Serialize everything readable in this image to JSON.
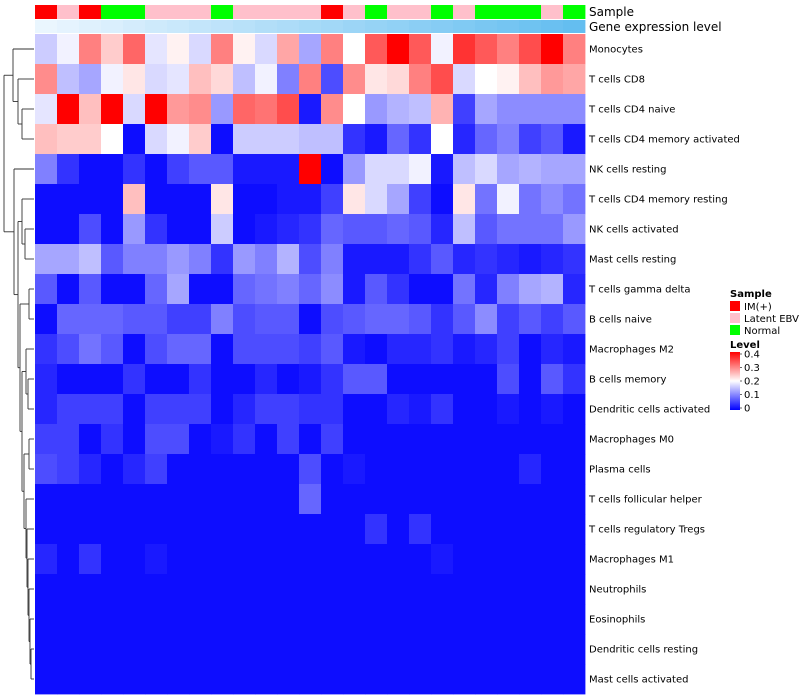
{
  "chart_data": {
    "type": "heatmap",
    "annotations": {
      "sample_title": "Sample",
      "level_title": "Gene expression level",
      "sample_colors": {
        "IM(+)": "#ff0000",
        "Latent EBV": "#ffc0cb",
        "Normal": "#00ff00"
      },
      "samples": [
        "IM(+)",
        "Latent EBV",
        "IM(+)",
        "Normal",
        "Normal",
        "Latent EBV",
        "Latent EBV",
        "Latent EBV",
        "Normal",
        "Latent EBV",
        "Latent EBV",
        "Latent EBV",
        "Latent EBV",
        "IM(+)",
        "Latent EBV",
        "Normal",
        "Latent EBV",
        "Latent EBV",
        "Normal",
        "Latent EBV",
        "Normal",
        "Normal",
        "Normal",
        "Latent EBV",
        "Normal"
      ],
      "levels": [
        0.01,
        0.02,
        0.03,
        0.04,
        0.05,
        0.06,
        0.07,
        0.08,
        0.09,
        0.1,
        0.11,
        0.12,
        0.13,
        0.14,
        0.15,
        0.16,
        0.17,
        0.18,
        0.19,
        0.2,
        0.21,
        0.22,
        0.23,
        0.24,
        0.25
      ]
    },
    "rows": [
      "Monocytes",
      "T cells CD8",
      "T cells CD4 naive",
      "T cells CD4 memory activated",
      "NK cells resting",
      "T cells CD4 memory resting",
      "NK cells activated",
      "Mast cells resting",
      "T cells gamma delta",
      "B cells naive",
      "Macrophages M2",
      "B cells memory",
      "Dendritic cells activated",
      "Macrophages M0",
      "Plasma cells",
      "T cells follicular helper",
      "T cells regulatory  Tregs",
      "Macrophages M1",
      "Neutrophils",
      "Eosinophils",
      "Dendritic cells resting",
      "Mast cells activated"
    ],
    "values": [
      [
        0.16,
        0.19,
        0.3,
        0.24,
        0.32,
        0.18,
        0.21,
        0.17,
        0.3,
        0.21,
        0.17,
        0.27,
        0.13,
        0.3,
        0.2,
        0.33,
        0.4,
        0.33,
        0.19,
        0.36,
        0.33,
        0.3,
        0.34,
        0.4,
        0.3
      ],
      [
        0.29,
        0.15,
        0.13,
        0.19,
        0.22,
        0.17,
        0.18,
        0.25,
        0.23,
        0.15,
        0.19,
        0.1,
        0.3,
        0.06,
        0.29,
        0.22,
        0.23,
        0.3,
        0.34,
        0.17,
        0.2,
        0.21,
        0.25,
        0.28,
        0.27
      ],
      [
        0.18,
        0.4,
        0.25,
        0.4,
        0.17,
        0.4,
        0.28,
        0.29,
        0.12,
        0.32,
        0.31,
        0.34,
        0.02,
        0.29,
        0.2,
        0.12,
        0.14,
        0.15,
        0.26,
        0.05,
        0.13,
        0.11,
        0.11,
        0.11,
        0.11
      ],
      [
        0.25,
        0.24,
        0.24,
        0.2,
        0.01,
        0.17,
        0.19,
        0.24,
        0.01,
        0.16,
        0.16,
        0.16,
        0.15,
        0.15,
        0.04,
        0.02,
        0.08,
        0.04,
        0.2,
        0.03,
        0.08,
        0.1,
        0.05,
        0.07,
        0.02
      ],
      [
        0.1,
        0.04,
        0.01,
        0.01,
        0.04,
        0.01,
        0.05,
        0.07,
        0.07,
        0.02,
        0.02,
        0.02,
        0.4,
        0.01,
        0.12,
        0.17,
        0.17,
        0.19,
        0.02,
        0.15,
        0.17,
        0.13,
        0.14,
        0.13,
        0.13
      ],
      [
        0.01,
        0.01,
        0.01,
        0.01,
        0.25,
        0.01,
        0.01,
        0.01,
        0.22,
        0.01,
        0.01,
        0.02,
        0.02,
        0.05,
        0.22,
        0.17,
        0.13,
        0.05,
        0.01,
        0.22,
        0.09,
        0.19,
        0.09,
        0.11,
        0.09
      ],
      [
        0.01,
        0.01,
        0.06,
        0.01,
        0.12,
        0.04,
        0.01,
        0.01,
        0.16,
        0.01,
        0.02,
        0.03,
        0.04,
        0.08,
        0.07,
        0.07,
        0.08,
        0.07,
        0.03,
        0.15,
        0.07,
        0.09,
        0.09,
        0.09,
        0.12
      ],
      [
        0.13,
        0.13,
        0.15,
        0.07,
        0.1,
        0.1,
        0.12,
        0.1,
        0.04,
        0.12,
        0.1,
        0.14,
        0.06,
        0.1,
        0.02,
        0.02,
        0.02,
        0.04,
        0.07,
        0.03,
        0.04,
        0.03,
        0.02,
        0.03,
        0.04
      ],
      [
        0.07,
        0.01,
        0.07,
        0.01,
        0.01,
        0.08,
        0.13,
        0.01,
        0.01,
        0.08,
        0.09,
        0.1,
        0.08,
        0.11,
        0.02,
        0.07,
        0.04,
        0.01,
        0.01,
        0.09,
        0.03,
        0.1,
        0.13,
        0.14,
        0.03
      ],
      [
        0.01,
        0.08,
        0.08,
        0.08,
        0.07,
        0.07,
        0.05,
        0.05,
        0.1,
        0.06,
        0.07,
        0.07,
        0.01,
        0.06,
        0.07,
        0.08,
        0.08,
        0.07,
        0.04,
        0.07,
        0.11,
        0.05,
        0.07,
        0.05,
        0.07
      ],
      [
        0.04,
        0.06,
        0.09,
        0.07,
        0.01,
        0.06,
        0.08,
        0.08,
        0.01,
        0.06,
        0.06,
        0.06,
        0.05,
        0.07,
        0.02,
        0.01,
        0.03,
        0.03,
        0.04,
        0.02,
        0.03,
        0.05,
        0.01,
        0.03,
        0.02
      ],
      [
        0.03,
        0.01,
        0.01,
        0.01,
        0.04,
        0.01,
        0.01,
        0.04,
        0.01,
        0.01,
        0.03,
        0.01,
        0.02,
        0.04,
        0.07,
        0.07,
        0.01,
        0.01,
        0.01,
        0.01,
        0.01,
        0.06,
        0.01,
        0.07,
        0.04
      ],
      [
        0.03,
        0.05,
        0.05,
        0.05,
        0.01,
        0.05,
        0.05,
        0.05,
        0.01,
        0.03,
        0.05,
        0.05,
        0.04,
        0.04,
        0.01,
        0.01,
        0.03,
        0.02,
        0.04,
        0.01,
        0.01,
        0.02,
        0.01,
        0.02,
        0.01
      ],
      [
        0.05,
        0.05,
        0.01,
        0.04,
        0.01,
        0.06,
        0.06,
        0.01,
        0.02,
        0.04,
        0.01,
        0.05,
        0.01,
        0.05,
        0.01,
        0.01,
        0.01,
        0.01,
        0.01,
        0.01,
        0.01,
        0.01,
        0.01,
        0.01,
        0.01
      ],
      [
        0.06,
        0.05,
        0.03,
        0.01,
        0.03,
        0.05,
        0.01,
        0.01,
        0.01,
        0.01,
        0.01,
        0.01,
        0.06,
        0.01,
        0.02,
        0.01,
        0.01,
        0.01,
        0.01,
        0.01,
        0.01,
        0.01,
        0.03,
        0.01,
        0.01
      ],
      [
        0.01,
        0.01,
        0.01,
        0.01,
        0.01,
        0.01,
        0.01,
        0.01,
        0.01,
        0.01,
        0.01,
        0.01,
        0.08,
        0.01,
        0.01,
        0.01,
        0.01,
        0.01,
        0.01,
        0.01,
        0.01,
        0.01,
        0.01,
        0.01,
        0.01
      ],
      [
        0.01,
        0.01,
        0.01,
        0.01,
        0.01,
        0.01,
        0.01,
        0.01,
        0.01,
        0.01,
        0.01,
        0.01,
        0.01,
        0.01,
        0.01,
        0.04,
        0.01,
        0.04,
        0.01,
        0.01,
        0.01,
        0.01,
        0.01,
        0.01,
        0.01
      ],
      [
        0.03,
        0.01,
        0.04,
        0.01,
        0.01,
        0.02,
        0.01,
        0.01,
        0.01,
        0.01,
        0.01,
        0.01,
        0.01,
        0.01,
        0.01,
        0.01,
        0.01,
        0.01,
        0.02,
        0.01,
        0.01,
        0.01,
        0.01,
        0.01,
        0.01
      ],
      [
        0.01,
        0.01,
        0.01,
        0.01,
        0.01,
        0.01,
        0.01,
        0.01,
        0.01,
        0.01,
        0.01,
        0.01,
        0.01,
        0.01,
        0.01,
        0.01,
        0.01,
        0.01,
        0.01,
        0.01,
        0.01,
        0.01,
        0.01,
        0.01,
        0.01
      ],
      [
        0.01,
        0.01,
        0.01,
        0.01,
        0.01,
        0.01,
        0.01,
        0.01,
        0.01,
        0.01,
        0.01,
        0.01,
        0.01,
        0.01,
        0.01,
        0.01,
        0.01,
        0.01,
        0.01,
        0.01,
        0.01,
        0.01,
        0.01,
        0.01,
        0.01
      ],
      [
        0.01,
        0.01,
        0.01,
        0.01,
        0.01,
        0.01,
        0.01,
        0.01,
        0.01,
        0.01,
        0.01,
        0.01,
        0.01,
        0.01,
        0.01,
        0.01,
        0.01,
        0.01,
        0.01,
        0.01,
        0.01,
        0.01,
        0.01,
        0.01,
        0.01
      ],
      [
        0.01,
        0.01,
        0.01,
        0.01,
        0.01,
        0.01,
        0.01,
        0.01,
        0.01,
        0.01,
        0.01,
        0.01,
        0.01,
        0.01,
        0.01,
        0.01,
        0.01,
        0.01,
        0.01,
        0.01,
        0.01,
        0.01,
        0.01,
        0.01,
        0.01
      ]
    ],
    "color_scale": {
      "min": 0,
      "max": 0.4,
      "colors": [
        "#0000ff",
        "#ffffff",
        "#ff0000"
      ]
    },
    "legend": {
      "sample_title": "Sample",
      "sample_entries": [
        "IM(+)",
        "Latent EBV",
        "Normal"
      ],
      "level_title": "Level",
      "level_ticks": [
        "0.4",
        "0.3",
        "0.2",
        "0.1",
        "0"
      ],
      "placement": "right"
    }
  }
}
